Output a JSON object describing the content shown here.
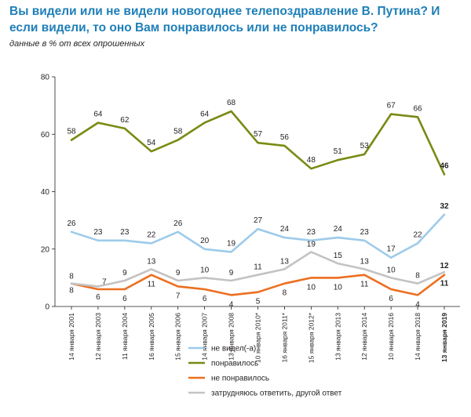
{
  "title": "Вы видели или не видели новогоднее телепоздравление В. Путина? И если видели, то оно Вам понравилось или не понравилось?",
  "subtitle": "данные в % от всех опрошенных",
  "chart_data": {
    "type": "line",
    "title": "Вы видели или не видели новогоднее телепоздравление В. Путина? И если видели, то оно Вам понравилось или не понравилось?",
    "subtitle": "данные в % от всех опрошенных",
    "xlabel": "",
    "ylabel": "",
    "ylim": [
      0,
      80
    ],
    "yticks": [
      0,
      20,
      40,
      60,
      80
    ],
    "grid": false,
    "legend_position": "bottom-center",
    "x": [
      "14 января 2001",
      "12 января 2003",
      "11 января 2004",
      "16 января 2005",
      "15 января 2006",
      "14 января 2007",
      "13 января 2008",
      "10 января 2010*",
      "16 января 2011*",
      "15 января 2012*",
      "13 января 2013",
      "12 января 2014",
      "10 января 2016",
      "14 января 2018",
      "13 января 2019"
    ],
    "bold_last_x": true,
    "series": [
      {
        "name": "не видел(-а)",
        "color": "#9dcbea",
        "values": [
          26,
          23,
          23,
          22,
          26,
          20,
          19,
          27,
          24,
          23,
          24,
          23,
          17,
          22,
          32
        ]
      },
      {
        "name": "понравилось",
        "color": "#7a8a13",
        "values": [
          58,
          64,
          62,
          54,
          58,
          64,
          68,
          57,
          56,
          48,
          51,
          53,
          67,
          66,
          46
        ]
      },
      {
        "name": "не понравилось",
        "color": "#ec6f1f",
        "values": [
          8,
          6,
          6,
          11,
          7,
          6,
          4,
          5,
          8,
          10,
          10,
          11,
          6,
          4,
          11
        ]
      },
      {
        "name": "затрудняюсь ответить, другой ответ",
        "color": "#c3c3c3",
        "values": [
          8,
          7,
          9,
          13,
          9,
          10,
          9,
          11,
          13,
          19,
          15,
          13,
          10,
          8,
          12
        ]
      }
    ]
  }
}
